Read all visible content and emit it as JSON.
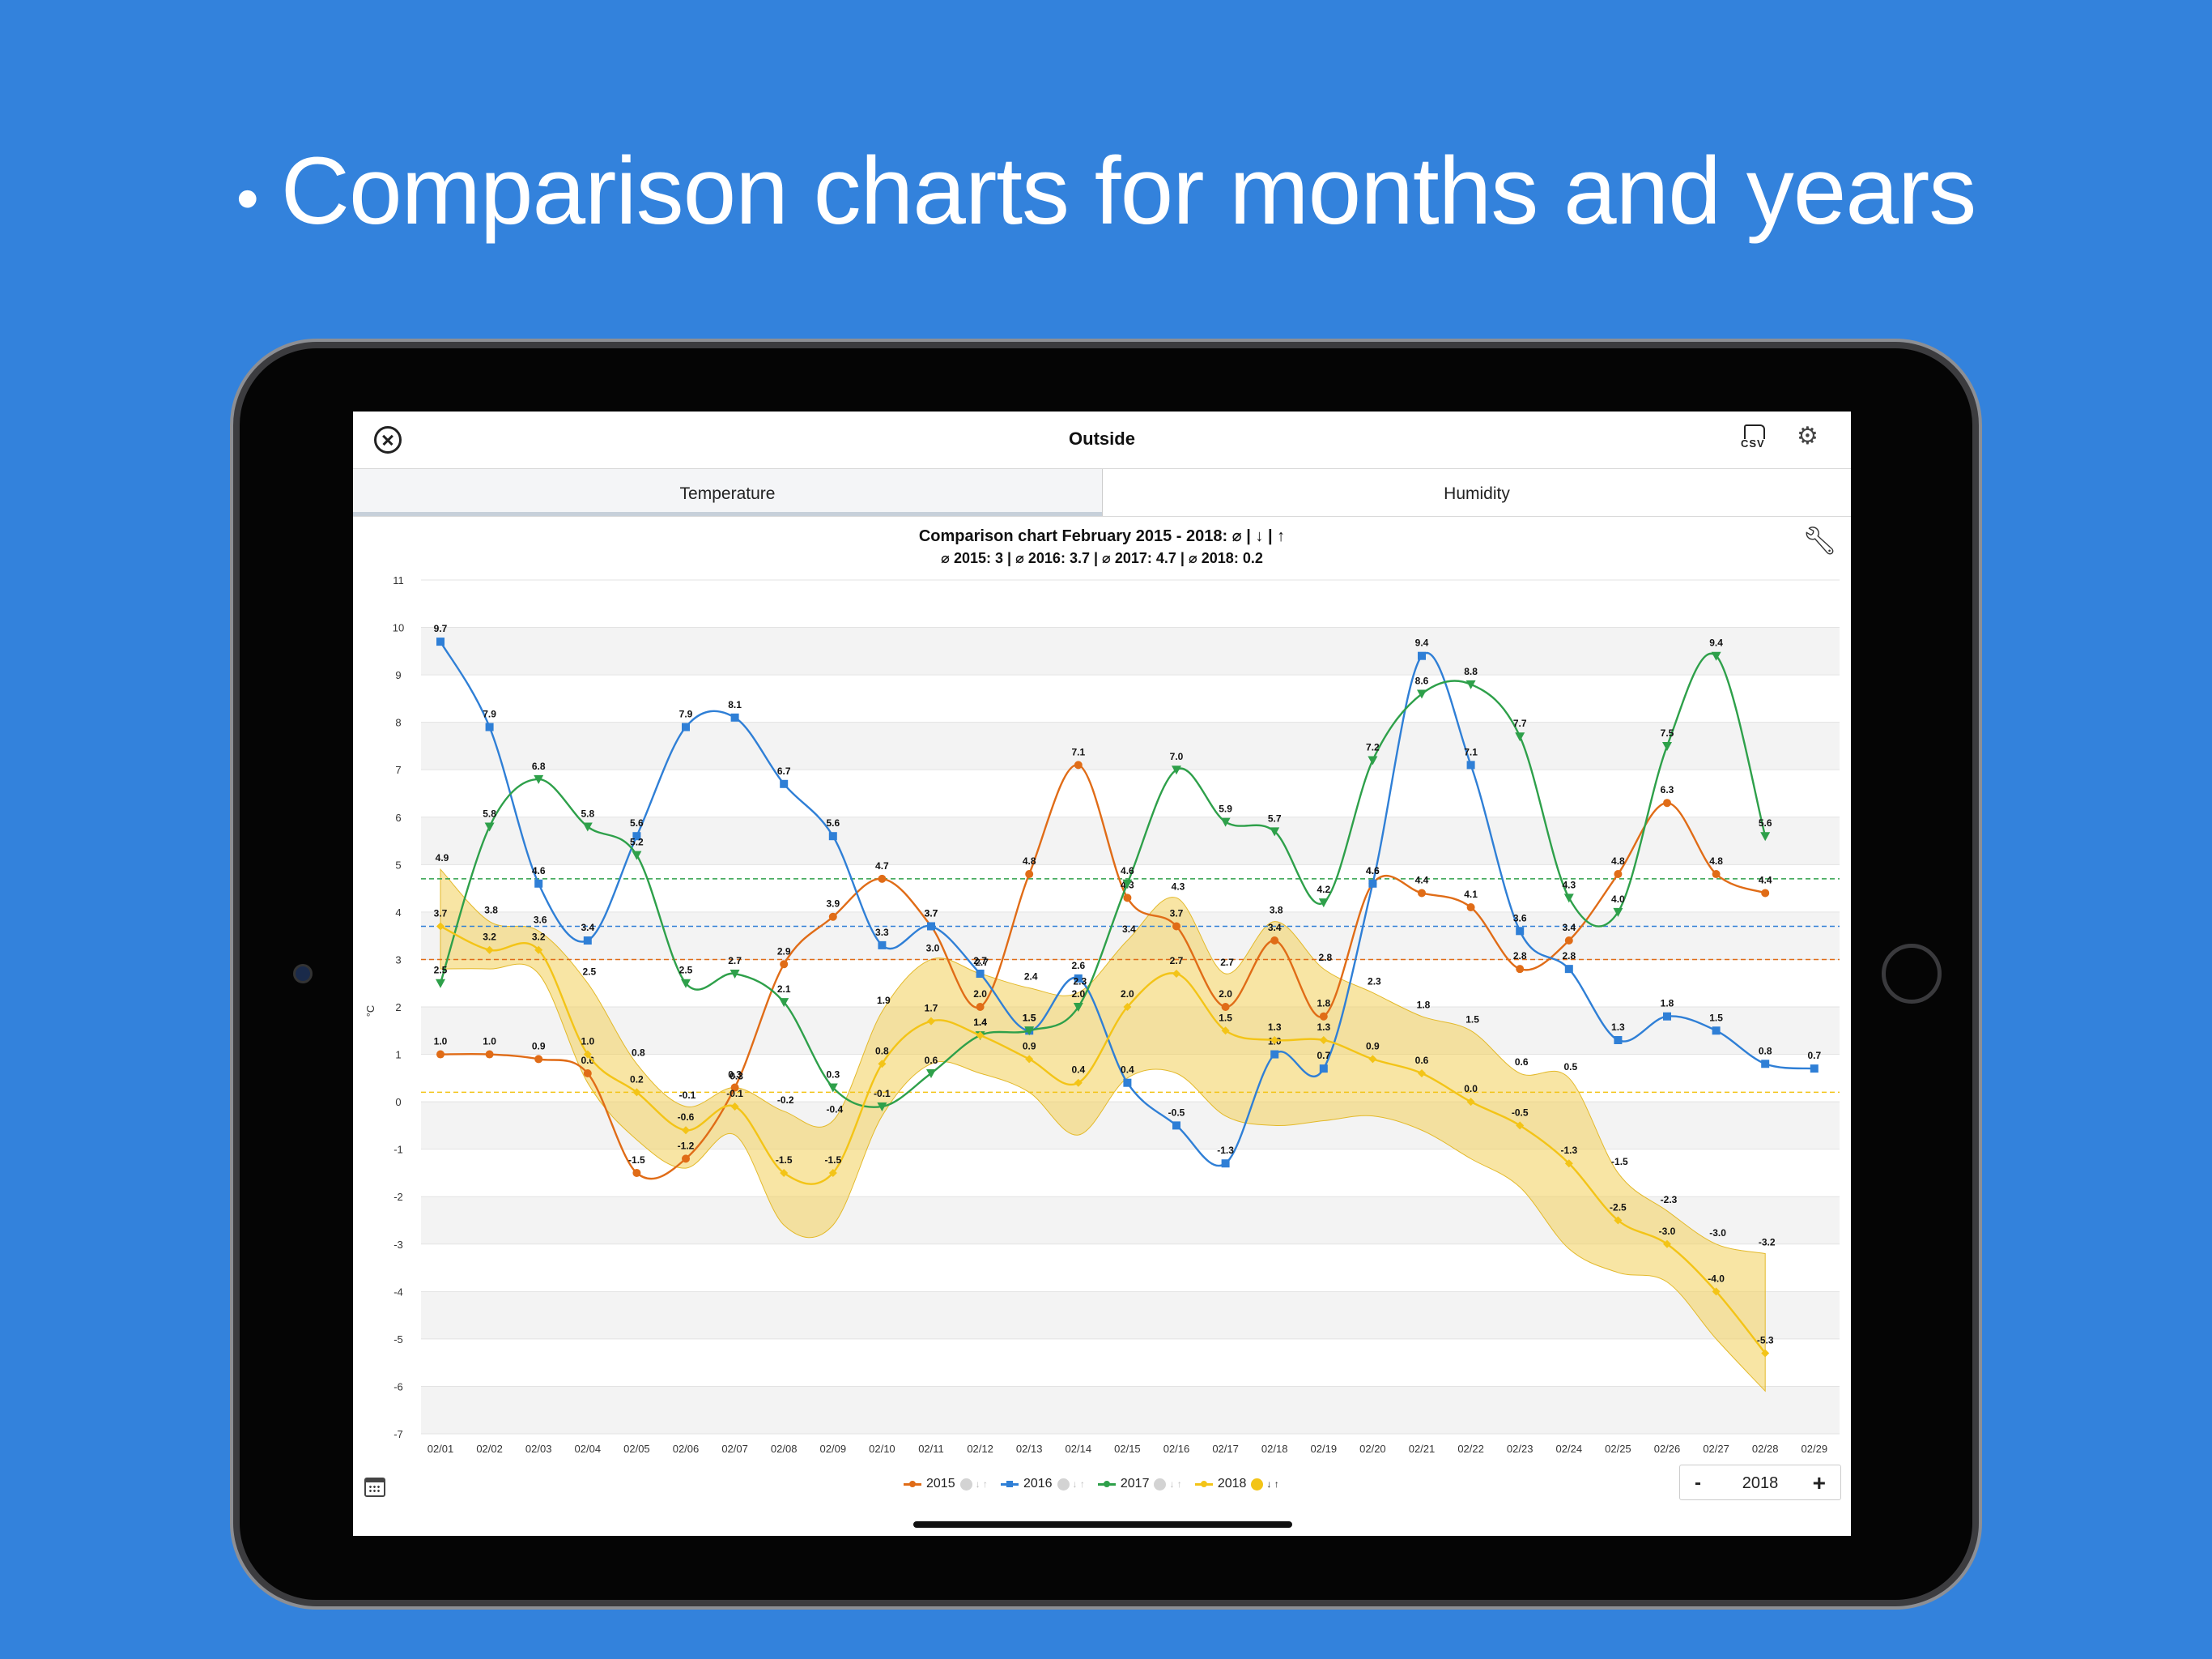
{
  "headline": {
    "bullet": "•",
    "text": "Comparison charts for months and years"
  },
  "navbar": {
    "title": "Outside",
    "csv_label": "CSV"
  },
  "tabs": [
    {
      "label": "Temperature"
    },
    {
      "label": "Humidity"
    }
  ],
  "selected_tab": "Temperature",
  "year_stepper": {
    "minus": "-",
    "value": "2018",
    "plus": "+"
  },
  "legend": [
    {
      "name": "2015",
      "color": "#e06c17",
      "extremes_enabled": false
    },
    {
      "name": "2016",
      "color": "#2f7fd6",
      "extremes_enabled": false
    },
    {
      "name": "2017",
      "color": "#2ea04a",
      "extremes_enabled": false
    },
    {
      "name": "2018",
      "color": "#f3c417",
      "extremes_enabled": true
    }
  ],
  "legend_extremes_symbol": "↓ ↑",
  "colors": {
    "background": "#3382dc",
    "band": "#f2cf5a"
  },
  "chart_data": {
    "type": "line",
    "title": "Comparison chart February 2015 - 2018: ⌀ | ↓ | ↑",
    "subtitle": "⌀ 2015: 3 | ⌀ 2016: 3.7 | ⌀ 2017: 4.7 | ⌀ 2018: 0.2",
    "ylabel": "°C",
    "ylim": [
      -7,
      11
    ],
    "yticks": [
      11,
      10,
      9,
      8,
      7,
      6,
      5,
      4,
      3,
      2,
      1,
      0,
      -1,
      -2,
      -3,
      -4,
      -5,
      -6,
      -7
    ],
    "categories": [
      "02/01",
      "02/02",
      "02/03",
      "02/04",
      "02/05",
      "02/06",
      "02/07",
      "02/08",
      "02/09",
      "02/10",
      "02/11",
      "02/12",
      "02/13",
      "02/14",
      "02/15",
      "02/16",
      "02/17",
      "02/18",
      "02/19",
      "02/20",
      "02/21",
      "02/22",
      "02/23",
      "02/24",
      "02/25",
      "02/26",
      "02/27",
      "02/28",
      "02/29"
    ],
    "series": [
      {
        "name": "2015",
        "color": "#e06c17",
        "marker": "circle",
        "average": 3,
        "values": [
          1.0,
          1.0,
          0.9,
          0.6,
          -1.5,
          -1.2,
          0.3,
          2.9,
          3.9,
          4.7,
          3.7,
          2.0,
          4.8,
          7.1,
          4.3,
          3.7,
          2.0,
          3.4,
          1.8,
          4.6,
          4.4,
          4.1,
          2.8,
          3.4,
          4.8,
          6.3,
          4.8,
          4.4,
          null
        ]
      },
      {
        "name": "2016",
        "color": "#2f7fd6",
        "marker": "square",
        "average": 3.7,
        "values": [
          9.7,
          7.9,
          4.6,
          3.4,
          5.6,
          7.9,
          8.1,
          6.7,
          5.6,
          3.3,
          3.7,
          2.7,
          1.5,
          2.6,
          0.4,
          -0.5,
          -1.3,
          1.0,
          0.7,
          4.6,
          9.4,
          7.1,
          3.6,
          2.8,
          1.3,
          1.8,
          1.5,
          0.8,
          0.7
        ]
      },
      {
        "name": "2017",
        "color": "#2ea04a",
        "marker": "triangle",
        "average": 4.7,
        "values": [
          2.5,
          5.8,
          6.8,
          5.8,
          5.2,
          2.5,
          2.7,
          2.1,
          0.3,
          -0.1,
          0.6,
          1.4,
          1.5,
          2.0,
          4.6,
          7.0,
          5.9,
          5.7,
          4.2,
          7.2,
          8.6,
          8.8,
          7.7,
          4.3,
          4.0,
          7.5,
          9.4,
          5.6,
          null
        ]
      },
      {
        "name": "2018",
        "color": "#f3c417",
        "marker": "diamond",
        "average": 0.2,
        "values": [
          3.7,
          3.2,
          3.2,
          1.0,
          0.2,
          -0.6,
          -0.1,
          -1.5,
          -1.5,
          0.8,
          1.7,
          1.4,
          0.9,
          0.4,
          2.0,
          2.7,
          1.5,
          1.3,
          1.3,
          0.9,
          0.6,
          0.0,
          -0.5,
          -1.3,
          -2.5,
          -3.0,
          -4.0,
          -5.3,
          null
        ],
        "max": [
          4.9,
          3.8,
          3.6,
          2.5,
          0.8,
          -0.1,
          0.3,
          -0.2,
          -0.4,
          1.9,
          3.0,
          2.7,
          2.4,
          2.3,
          3.4,
          4.3,
          2.7,
          3.8,
          2.8,
          2.3,
          1.8,
          1.5,
          0.6,
          0.5,
          -1.5,
          -2.3,
          -3.0,
          -3.2,
          null
        ],
        "min": [
          2.8,
          2.8,
          2.7,
          0.4,
          -0.8,
          -1.4,
          -0.7,
          -2.6,
          -2.6,
          -0.3,
          0.8,
          0.6,
          0.2,
          -0.7,
          0.5,
          0.6,
          -0.3,
          -0.5,
          -0.4,
          -0.3,
          -0.6,
          -1.2,
          -1.8,
          -3.1,
          -3.6,
          -3.8,
          -5.0,
          -6.1,
          null
        ]
      }
    ]
  }
}
